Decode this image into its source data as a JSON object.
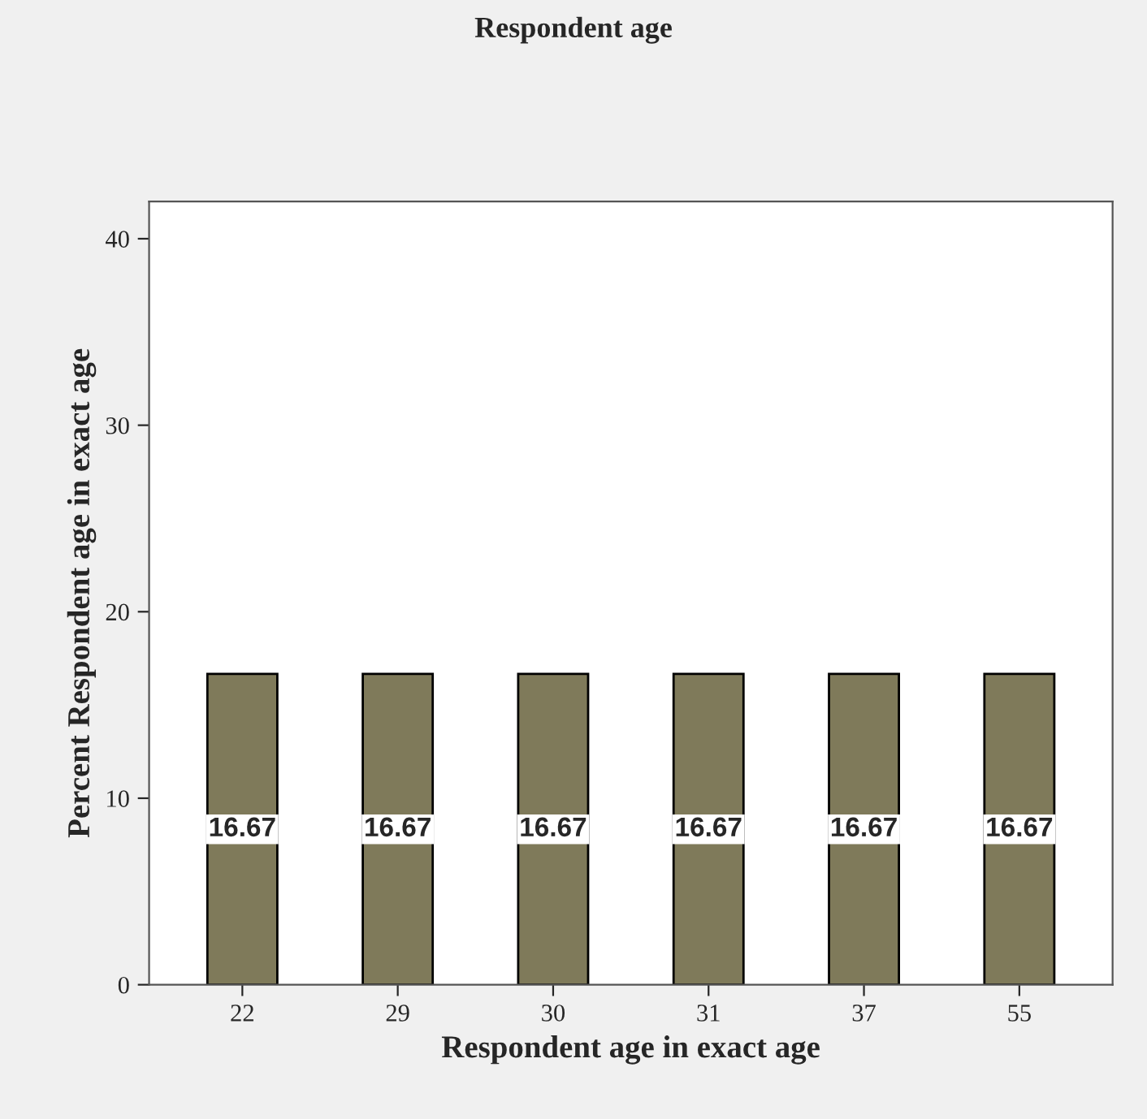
{
  "chart_data": {
    "type": "bar",
    "title": "Respondent age",
    "xlabel": "Respondent age in exact age",
    "ylabel": "Percent Respondent age in exact age",
    "categories": [
      "22",
      "29",
      "30",
      "31",
      "37",
      "55"
    ],
    "values": [
      16.67,
      16.67,
      16.67,
      16.67,
      16.67,
      16.67
    ],
    "color": "#7f7a5a",
    "ylim": [
      0,
      42
    ],
    "yticks": [
      0,
      10,
      20,
      30,
      40
    ],
    "data_labels": true,
    "grid": false
  }
}
